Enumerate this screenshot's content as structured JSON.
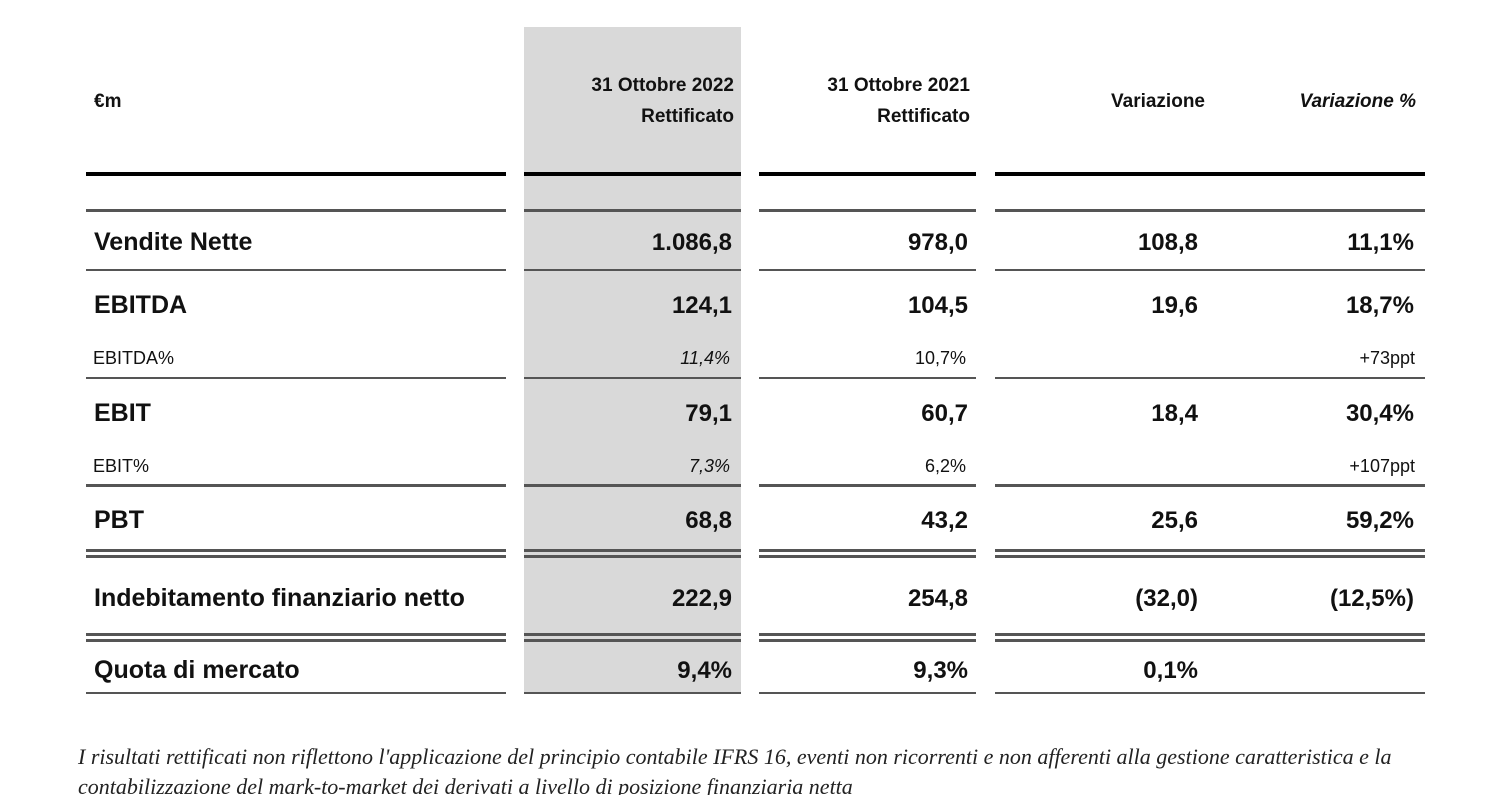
{
  "table": {
    "headers": {
      "label": "€m",
      "col1": [
        "31 Ottobre 2022",
        "Rettificato"
      ],
      "col2": [
        "31 Ottobre 2021",
        "Rettificato"
      ],
      "col3": "Variazione",
      "col4": "Variazione %"
    },
    "rows": [
      {
        "label": "Vendite Nette",
        "v2022": "1.086,8",
        "v2021": "978,0",
        "var": "108,8",
        "varpct": "11,1%"
      },
      {
        "label": "EBITDA",
        "v2022": "124,1",
        "v2021": "104,5",
        "var": "19,6",
        "varpct": "18,7%"
      },
      {
        "label": "EBITDA%",
        "v2022": "11,4%",
        "v2021": "10,7%",
        "var": "",
        "varpct": "+73ppt"
      },
      {
        "label": "EBIT",
        "v2022": "79,1",
        "v2021": "60,7",
        "var": "18,4",
        "varpct": "30,4%"
      },
      {
        "label": "EBIT%",
        "v2022": "7,3%",
        "v2021": "6,2%",
        "var": "",
        "varpct": "+107ppt"
      },
      {
        "label": "PBT",
        "v2022": "68,8",
        "v2021": "43,2",
        "var": "25,6",
        "varpct": "59,2%"
      },
      {
        "label": "Indebitamento finanziario netto",
        "v2022": "222,9",
        "v2021": "254,8",
        "var": "(32,0)",
        "varpct": "(12,5%)"
      },
      {
        "label": "Quota di mercato",
        "v2022": "9,4%",
        "v2021": "9,3%",
        "var": "0,1%",
        "varpct": ""
      }
    ]
  },
  "footnote": "I risultati rettificati non riflettono l'applicazione del principio contabile IFRS 16, eventi non ricorrenti e non afferenti alla gestione caratteristica e la contabilizzazione del mark-to-market dei derivati a livello di posizione finanziaria netta"
}
